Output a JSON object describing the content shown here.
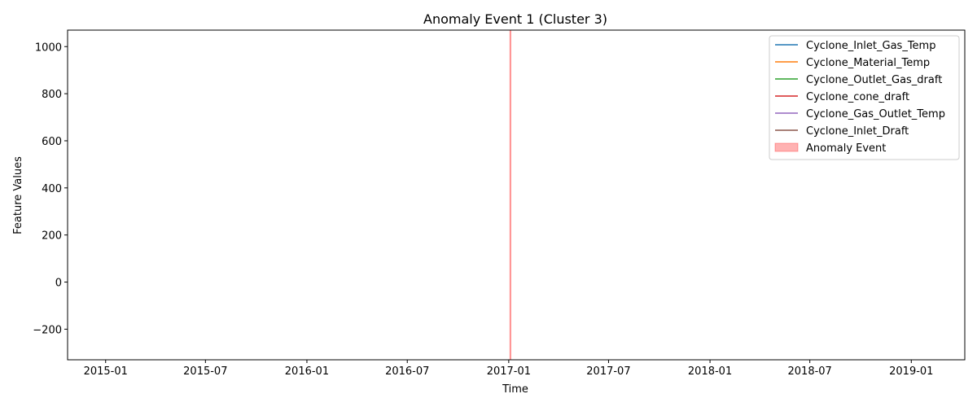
{
  "chart_data": {
    "type": "line",
    "title": "Anomaly Event 1 (Cluster 3)",
    "xlabel": "Time",
    "ylabel": "Feature Values",
    "xlim": [
      "2014-10-24",
      "2019-04-08"
    ],
    "ylim": [
      -330,
      1070
    ],
    "x_ticks": [
      "2015-01",
      "2015-07",
      "2016-01",
      "2016-07",
      "2017-01",
      "2017-07",
      "2018-01",
      "2018-07",
      "2019-01"
    ],
    "y_ticks": [
      -200,
      0,
      200,
      400,
      600,
      800,
      1000
    ],
    "y_tick_labels": [
      "−200",
      "0",
      "200",
      "400",
      "600",
      "800",
      "1000"
    ],
    "grid": false,
    "legend_position": "upper right",
    "series": [
      {
        "name": "Cyclone_Inlet_Gas_Temp",
        "color": "#1f77b4",
        "values": []
      },
      {
        "name": "Cyclone_Material_Temp",
        "color": "#ff7f0e",
        "values": []
      },
      {
        "name": "Cyclone_Outlet_Gas_draft",
        "color": "#2ca02c",
        "values": []
      },
      {
        "name": "Cyclone_cone_draft",
        "color": "#d62728",
        "values": []
      },
      {
        "name": "Cyclone_Gas_Outlet_Temp",
        "color": "#9467bd",
        "values": []
      },
      {
        "name": "Cyclone_Inlet_Draft",
        "color": "#8c564b",
        "values": []
      }
    ],
    "anomaly_event": {
      "name": "Anomaly Event",
      "color": "#ff0000",
      "x": "2017-01-04"
    }
  }
}
